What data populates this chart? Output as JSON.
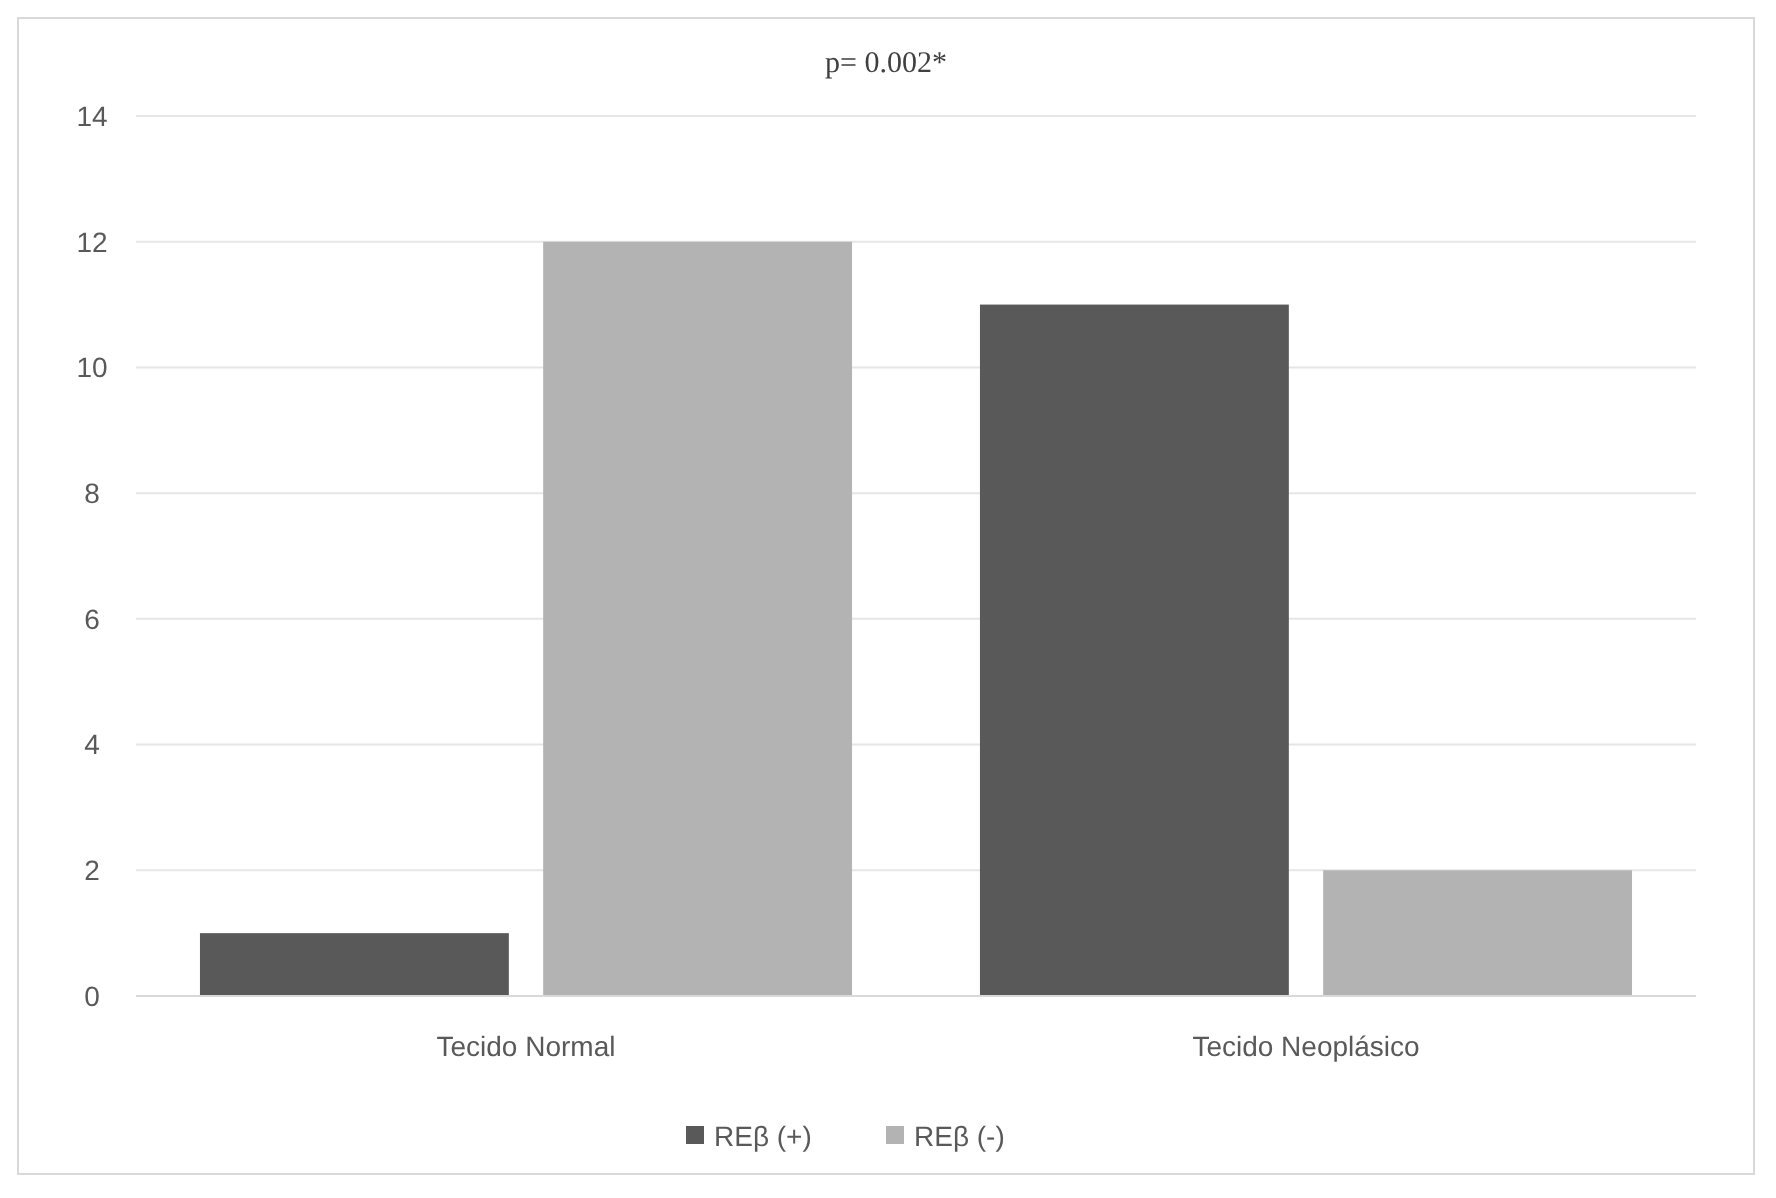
{
  "chart_data": {
    "type": "bar",
    "title": "p= 0.002*",
    "categories": [
      "Tecido Normal",
      "Tecido Neoplásico"
    ],
    "series": [
      {
        "name": "REβ (+)",
        "color": "#595959",
        "values": [
          1,
          11
        ]
      },
      {
        "name": "REβ (-)",
        "color": "#b3b3b3",
        "values": [
          12,
          2
        ]
      }
    ],
    "ylim": [
      0,
      14
    ],
    "yticks": [
      0,
      2,
      4,
      6,
      8,
      10,
      12,
      14
    ],
    "grid": "y",
    "legend": "bottom"
  }
}
